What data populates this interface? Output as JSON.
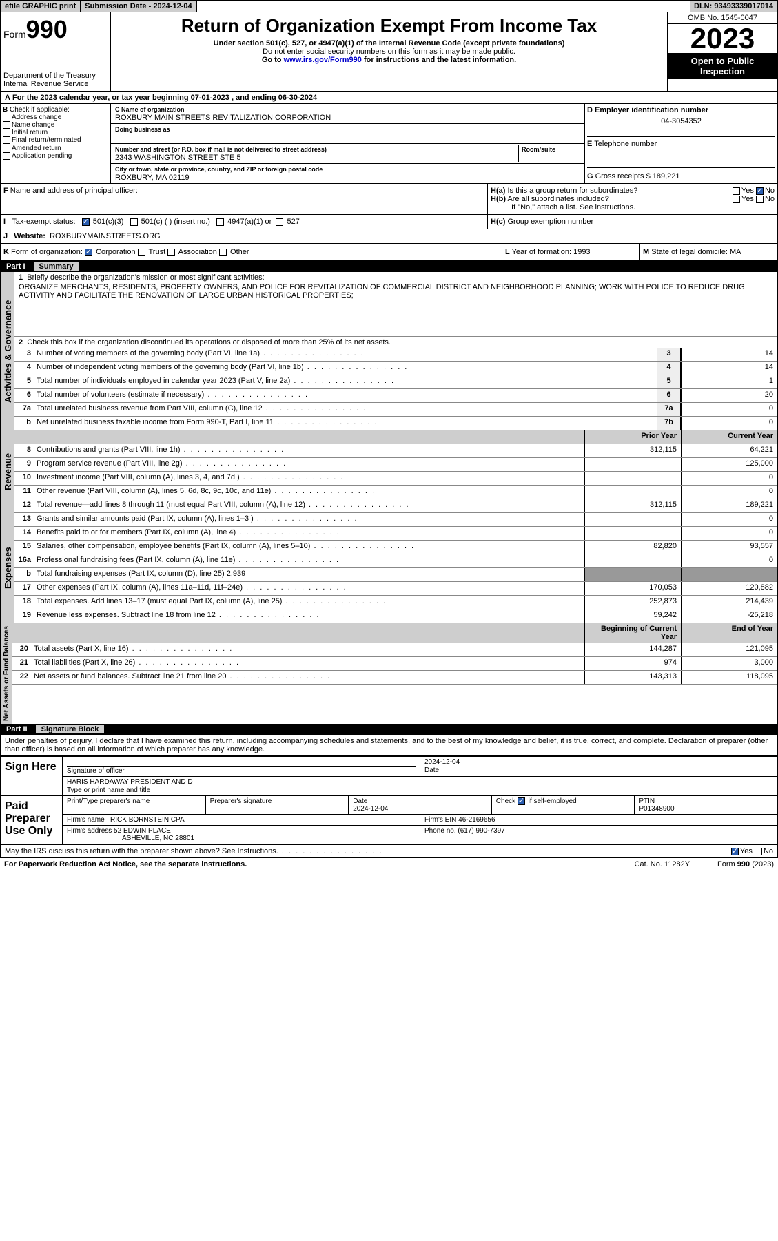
{
  "topbar": {
    "efile": "efile GRAPHIC print",
    "subdate_label": "Submission Date - ",
    "subdate": "2024-12-04",
    "dln_label": "DLN: ",
    "dln": "93493339017014"
  },
  "header": {
    "form_label": "Form",
    "form_num": "990",
    "dept": "Department of the Treasury",
    "irs": "Internal Revenue Service",
    "title": "Return of Organization Exempt From Income Tax",
    "sub1": "Under section 501(c), 527, or 4947(a)(1) of the Internal Revenue Code (except private foundations)",
    "sub2": "Do not enter social security numbers on this form as it may be made public.",
    "sub3_pre": "Go to ",
    "sub3_link": "www.irs.gov/Form990",
    "sub3_post": " for instructions and the latest information.",
    "omb": "OMB No. 1545-0047",
    "year": "2023",
    "inspect": "Open to Public Inspection"
  },
  "line_a": {
    "text_pre": "For the 2023 calendar year, or tax year beginning ",
    "begin": "07-01-2023",
    "mid": " , and ending ",
    "end": "06-30-2024"
  },
  "section_b": {
    "label": "Check if applicable:",
    "items": [
      "Address change",
      "Name change",
      "Initial return",
      "Final return/terminated",
      "Amended return",
      "Application pending"
    ]
  },
  "section_c": {
    "name_label": "Name of organization",
    "name": "ROXBURY MAIN STREETS REVITALIZATION CORPORATION",
    "dba_label": "Doing business as",
    "dba": "",
    "addr_label": "Number and street (or P.O. box if mail is not delivered to street address)",
    "room_label": "Room/suite",
    "addr": "2343 WASHINGTON STREET STE 5",
    "city_label": "City or town, state or province, country, and ZIP or foreign postal code",
    "city": "ROXBURY, MA  02119"
  },
  "section_d": {
    "label": "Employer identification number",
    "ein": "04-3054352"
  },
  "section_e": {
    "label": "Telephone number",
    "val": ""
  },
  "section_g": {
    "label": "Gross receipts $ ",
    "val": "189,221"
  },
  "section_f": {
    "label": "Name and address of principal officer:",
    "val": ""
  },
  "section_h": {
    "ha": "Is this a group return for subordinates?",
    "ha_no": true,
    "hb": "Are all subordinates included?",
    "hb_note": "If \"No,\" attach a list. See instructions.",
    "hc": "Group exemption number"
  },
  "section_i": {
    "label": "Tax-exempt status:",
    "c3": "501(c)(3)",
    "c": "501(c) (  ) (insert no.)",
    "a1": "4947(a)(1) or",
    "527": "527"
  },
  "section_j": {
    "label": "Website:",
    "val": "ROXBURYMAINSTREETS.ORG"
  },
  "section_k": {
    "label": "Form of organization:",
    "corp": "Corporation",
    "trust": "Trust",
    "assoc": "Association",
    "other": "Other"
  },
  "section_l": {
    "label": "Year of formation: ",
    "val": "1993"
  },
  "section_m": {
    "label": "State of legal domicile: ",
    "val": "MA"
  },
  "part1": {
    "num": "Part I",
    "title": "Summary"
  },
  "summary": {
    "vlabels": {
      "gov": "Activities & Governance",
      "rev": "Revenue",
      "exp": "Expenses",
      "net": "Net Assets or\nFund Balances"
    },
    "line1_label": "Briefly describe the organization's mission or most significant activities:",
    "line1": "ORGANIZE MERCHANTS, RESIDENTS, PROPERTY OWNERS, AND POLICE FOR REVITALIZATION OF COMMERCIAL DISTRICT AND NEIGHBORHOOD PLANNING; WORK WITH POLICE TO REDUCE DRUG ACTIVITIY AND FACILITATE THE RENOVATION OF LARGE URBAN HISTORICAL PROPERTIES;",
    "line2": "Check this box       if the organization discontinued its operations or disposed of more than 25% of its net assets.",
    "rows_gov": [
      {
        "n": "3",
        "d": "Number of voting members of the governing body (Part VI, line 1a)",
        "box": "3",
        "v": "14"
      },
      {
        "n": "4",
        "d": "Number of independent voting members of the governing body (Part VI, line 1b)",
        "box": "4",
        "v": "14"
      },
      {
        "n": "5",
        "d": "Total number of individuals employed in calendar year 2023 (Part V, line 2a)",
        "box": "5",
        "v": "1"
      },
      {
        "n": "6",
        "d": "Total number of volunteers (estimate if necessary)",
        "box": "6",
        "v": "20"
      },
      {
        "n": "7a",
        "d": "Total unrelated business revenue from Part VIII, column (C), line 12",
        "box": "7a",
        "v": "0"
      },
      {
        "n": "b",
        "d": "Net unrelated business taxable income from Form 990-T, Part I, line 11",
        "box": "7b",
        "v": "0"
      }
    ],
    "col_prior": "Prior Year",
    "col_current": "Current Year",
    "rows_rev": [
      {
        "n": "8",
        "d": "Contributions and grants (Part VIII, line 1h)",
        "p": "312,115",
        "c": "64,221"
      },
      {
        "n": "9",
        "d": "Program service revenue (Part VIII, line 2g)",
        "p": "",
        "c": "125,000"
      },
      {
        "n": "10",
        "d": "Investment income (Part VIII, column (A), lines 3, 4, and 7d )",
        "p": "",
        "c": "0"
      },
      {
        "n": "11",
        "d": "Other revenue (Part VIII, column (A), lines 5, 6d, 8c, 9c, 10c, and 11e)",
        "p": "",
        "c": "0"
      },
      {
        "n": "12",
        "d": "Total revenue—add lines 8 through 11 (must equal Part VIII, column (A), line 12)",
        "p": "312,115",
        "c": "189,221"
      }
    ],
    "rows_exp": [
      {
        "n": "13",
        "d": "Grants and similar amounts paid (Part IX, column (A), lines 1–3 )",
        "p": "",
        "c": "0"
      },
      {
        "n": "14",
        "d": "Benefits paid to or for members (Part IX, column (A), line 4)",
        "p": "",
        "c": "0"
      },
      {
        "n": "15",
        "d": "Salaries, other compensation, employee benefits (Part IX, column (A), lines 5–10)",
        "p": "82,820",
        "c": "93,557"
      },
      {
        "n": "16a",
        "d": "Professional fundraising fees (Part IX, column (A), line 11e)",
        "p": "",
        "c": "0"
      },
      {
        "n": "b",
        "d": "Total fundraising expenses (Part IX, column (D), line 25) 2,939",
        "p": null,
        "c": null,
        "grey": true
      },
      {
        "n": "17",
        "d": "Other expenses (Part IX, column (A), lines 11a–11d, 11f–24e)",
        "p": "170,053",
        "c": "120,882"
      },
      {
        "n": "18",
        "d": "Total expenses. Add lines 13–17 (must equal Part IX, column (A), line 25)",
        "p": "252,873",
        "c": "214,439"
      },
      {
        "n": "19",
        "d": "Revenue less expenses. Subtract line 18 from line 12",
        "p": "59,242",
        "c": "-25,218"
      }
    ],
    "col_begin": "Beginning of Current Year",
    "col_end": "End of Year",
    "rows_net": [
      {
        "n": "20",
        "d": "Total assets (Part X, line 16)",
        "p": "144,287",
        "c": "121,095"
      },
      {
        "n": "21",
        "d": "Total liabilities (Part X, line 26)",
        "p": "974",
        "c": "3,000"
      },
      {
        "n": "22",
        "d": "Net assets or fund balances. Subtract line 21 from line 20",
        "p": "143,313",
        "c": "118,095"
      }
    ]
  },
  "part2": {
    "num": "Part II",
    "title": "Signature Block"
  },
  "perjury": "Under penalties of perjury, I declare that I have examined this return, including accompanying schedules and statements, and to the best of my knowledge and belief, it is true, correct, and complete. Declaration of preparer (other than officer) is based on all information of which preparer has any knowledge.",
  "sign": {
    "here": "Sign Here",
    "sig_officer_label": "Signature of officer",
    "date_label": "Date",
    "sig_date": "2024-12-04",
    "officer_name": "HARIS HARDAWAY PRESIDENT AND D",
    "type_label": "Type or print name and title",
    "paid": "Paid Preparer Use Only",
    "prep_name_label": "Print/Type preparer's name",
    "prep_sig_label": "Preparer's signature",
    "prep_date": "2024-12-04",
    "check_self": "Check       if self-employed",
    "ptin_label": "PTIN",
    "ptin": "P01348900",
    "firm_name_label": "Firm's name",
    "firm_name": "RICK BORNSTEIN CPA",
    "firm_ein_label": "Firm's EIN",
    "firm_ein": "46-2169656",
    "firm_addr_label": "Firm's address",
    "firm_addr1": "52 EDWIN PLACE",
    "firm_addr2": "ASHEVILLE, NC  28801",
    "phone_label": "Phone no.",
    "phone": "(617) 990-7397",
    "discuss": "May the IRS discuss this return with the preparer shown above? See Instructions."
  },
  "footer": {
    "pra": "For Paperwork Reduction Act Notice, see the separate instructions.",
    "cat": "Cat. No. 11282Y",
    "form": "Form 990 (2023)"
  },
  "yes": "Yes",
  "no": "No",
  "letters": {
    "A": "A",
    "B": "B",
    "C": "C",
    "D": "D",
    "E": "E",
    "F": "F",
    "G": "G",
    "H": "H",
    "I": "I",
    "J": "J",
    "K": "K",
    "L": "L",
    "M": "M"
  }
}
